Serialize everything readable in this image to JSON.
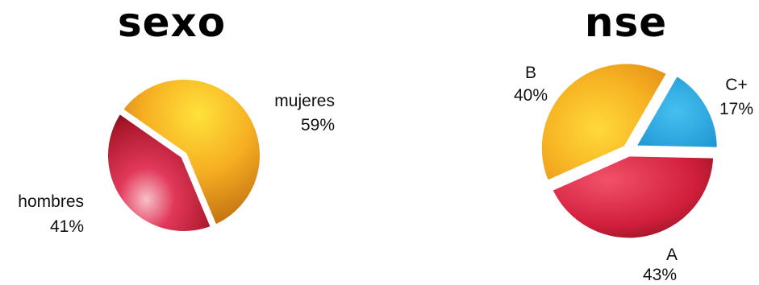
{
  "chart_data": [
    {
      "type": "pie",
      "title": "sexo",
      "slices": [
        {
          "label": "mujeres",
          "value": 59,
          "value_label": "59%",
          "color": "#f2a21e"
        },
        {
          "label": "hombres",
          "value": 41,
          "value_label": "41%",
          "color": "#d8243c"
        }
      ]
    },
    {
      "type": "pie",
      "title": "nse",
      "slices": [
        {
          "label": "C+",
          "value": 17,
          "value_label": "17%",
          "color": "#1e9fd9"
        },
        {
          "label": "A",
          "value": 43,
          "value_label": "43%",
          "color": "#d8243c"
        },
        {
          "label": "B",
          "value": 40,
          "value_label": "40%",
          "color": "#f2a21e"
        }
      ]
    }
  ]
}
